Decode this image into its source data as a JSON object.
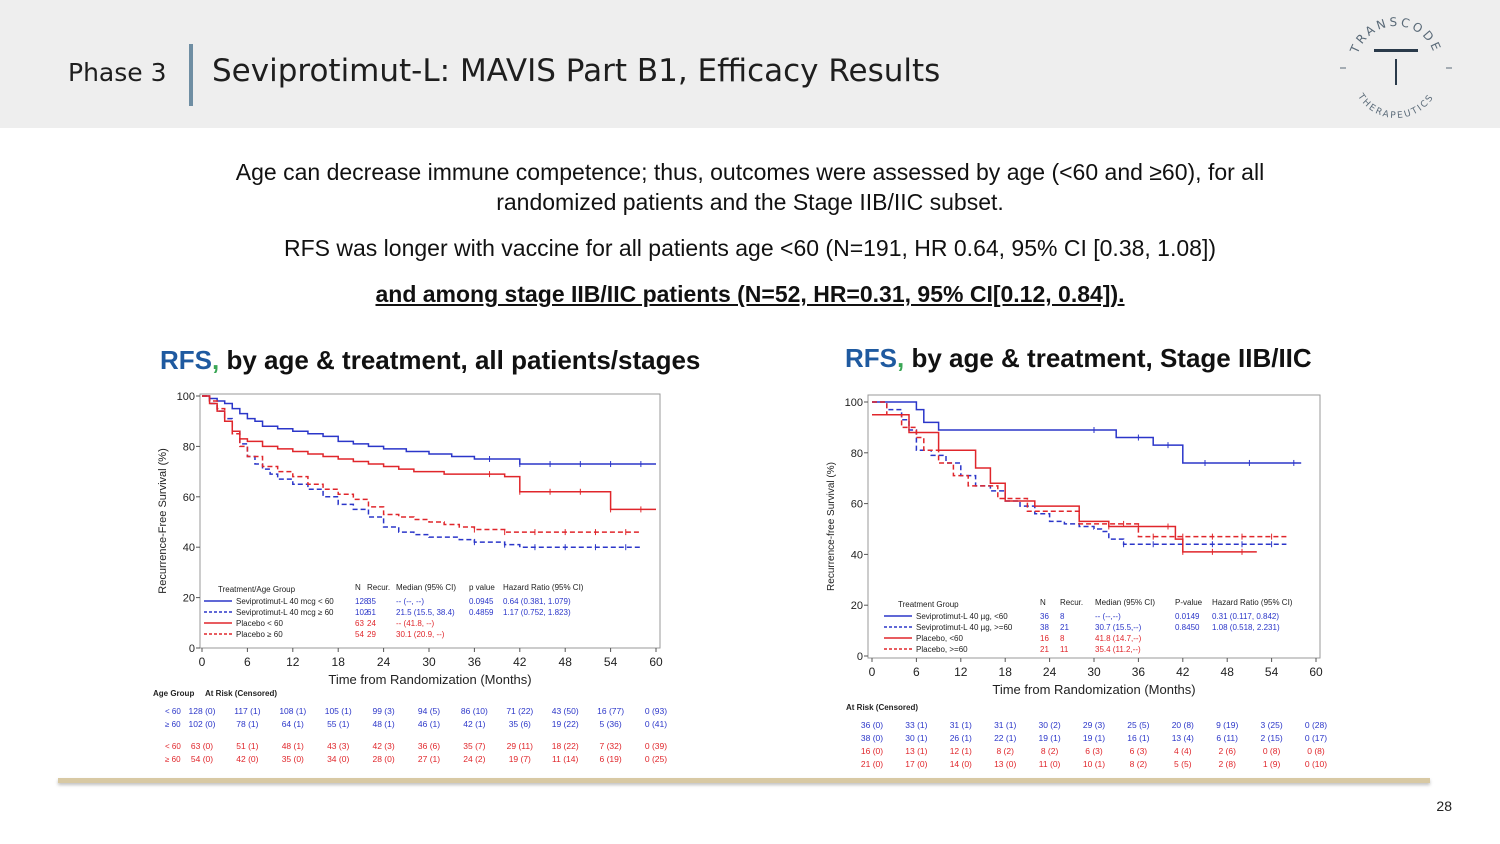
{
  "header": {
    "phase": "Phase 3",
    "title": "Seviprotimut-L:  MAVIS Part B1, Efficacy Results"
  },
  "logo": {
    "ring_text_top": "TRANSCODE",
    "ring_text_bottom": "THERAPEUTICS",
    "letter": "T"
  },
  "body": {
    "line1": "Age can decrease immune competence; thus, outcomes were assessed by age (<60 and ≥60), for all",
    "line2": "randomized patients and the Stage IIB/IIC subset.",
    "line3": "RFS was longer with vaccine for all patients age <60 (N=191, HR 0.64, 95% CI [0.38, 1.08])",
    "line4": "and among stage IIB/IIC patients (N=52, HR=0.31, 95% CI[0.12, 0.84])."
  },
  "panel1": {
    "rfs": "RFS",
    "comma": ",",
    "title_rest": " by age & treatment, all patients/stages"
  },
  "panel2": {
    "rfs": "RFS",
    "comma": ",",
    "title_rest": " by age & treatment, Stage IIB/IIC"
  },
  "page_number": "28",
  "colors": {
    "blue": "#2b36c9",
    "red": "#e0262b",
    "accent": "#1f5aa0",
    "green": "#3aa655"
  },
  "chart_data": [
    {
      "type": "line",
      "title": "RFS, by age & treatment, all patients/stages",
      "xlabel": "Time from Randomization (Months)",
      "ylabel": "Recurrence-Free Survival (%)",
      "xlim": [
        0,
        60
      ],
      "ylim": [
        0,
        100
      ],
      "xticks": [
        "0",
        "6",
        "12",
        "18",
        "24",
        "30",
        "36",
        "42",
        "48",
        "54",
        "60"
      ],
      "yticks": [
        "0",
        "20",
        "40",
        "60",
        "80",
        "100"
      ],
      "legend_title": "Treatment/Age Group",
      "legend_headers": [
        "N",
        "Recur.",
        "Median (95% CI)",
        "p value",
        "Hazard Ratio (95% CI)"
      ],
      "series": [
        {
          "name": "Seviprotimut-L 40 mcg < 60",
          "N": "128",
          "recur": "35",
          "median": "-- (--, --)",
          "p": "0.0945",
          "hr": "0.64 (0.381, 1.079)",
          "color": "#2b36c9",
          "dash": false,
          "x": [
            0,
            1,
            2,
            3,
            4,
            5,
            6,
            7,
            8,
            10,
            12,
            14,
            16,
            18,
            20,
            22,
            24,
            27,
            30,
            33,
            36,
            38,
            40,
            42,
            44,
            46,
            48,
            50,
            52,
            54,
            56,
            58,
            60
          ],
          "y": [
            100,
            99,
            98,
            97,
            95,
            93,
            91,
            90,
            88,
            87,
            86,
            85,
            84,
            82,
            81,
            80,
            79,
            78,
            77,
            76,
            75,
            75,
            75,
            73,
            73,
            73,
            73,
            73,
            73,
            73,
            73,
            73,
            73
          ]
        },
        {
          "name": "Seviprotimut-L 40 mcg ≥ 60",
          "N": "102",
          "recur": "61",
          "median": "21.5 (15.5, 38.4)",
          "p": "0.4859",
          "hr": "1.17 (0.752, 1.823)",
          "color": "#2b36c9",
          "dash": true,
          "x": [
            0,
            1,
            2,
            3,
            4,
            5,
            6,
            7,
            8,
            9,
            10,
            12,
            14,
            16,
            18,
            20,
            22,
            24,
            26,
            28,
            30,
            32,
            34,
            36,
            38,
            40,
            42,
            44,
            46,
            48,
            50,
            52,
            54,
            56,
            58
          ],
          "y": [
            100,
            97,
            94,
            91,
            86,
            81,
            76,
            73,
            71,
            69,
            67,
            65,
            63,
            60,
            57,
            55,
            52,
            48,
            46,
            45,
            44,
            44,
            43,
            42,
            42,
            41,
            40,
            40,
            40,
            40,
            40,
            40,
            40,
            40,
            40
          ]
        },
        {
          "name": "Placebo < 60",
          "N": "63",
          "recur": "24",
          "median": "-- (41.8, --)",
          "p": "",
          "hr": "",
          "color": "#e0262b",
          "dash": false,
          "x": [
            0,
            1,
            2,
            3,
            4,
            5,
            6,
            8,
            10,
            12,
            14,
            16,
            18,
            20,
            22,
            24,
            26,
            28,
            30,
            32,
            34,
            36,
            38,
            40,
            42,
            44,
            46,
            48,
            50,
            52,
            54,
            56,
            58,
            60
          ],
          "y": [
            100,
            97,
            94,
            90,
            86,
            83,
            82,
            80,
            79,
            78,
            77,
            76,
            75,
            74,
            73,
            72,
            71,
            70,
            70,
            69,
            69,
            69,
            69,
            68,
            62,
            62,
            62,
            62,
            62,
            62,
            55,
            55,
            55,
            55
          ]
        },
        {
          "name": "Placebo ≥ 60",
          "N": "54",
          "recur": "29",
          "median": "30.1 (20.9, --)",
          "p": "",
          "hr": "",
          "color": "#e0262b",
          "dash": true,
          "x": [
            0,
            1,
            2,
            3,
            4,
            5,
            6,
            8,
            10,
            12,
            14,
            16,
            18,
            20,
            22,
            24,
            26,
            28,
            30,
            32,
            34,
            36,
            38,
            40,
            42,
            44,
            46,
            48,
            50,
            52,
            54,
            56,
            58
          ],
          "y": [
            100,
            98,
            95,
            90,
            85,
            80,
            76,
            72,
            70,
            68,
            65,
            63,
            61,
            59,
            56,
            53,
            52,
            51,
            50,
            49,
            48,
            47,
            47,
            46,
            46,
            46,
            46,
            46,
            46,
            46,
            46,
            46,
            46
          ]
        }
      ],
      "risk_table": {
        "header": [
          "Age Group",
          "At Risk (Censored)"
        ],
        "rows": [
          {
            "group": "< 60",
            "color": "#2b36c9",
            "values": [
              "128 (0)",
              "117 (1)",
              "108 (1)",
              "105 (1)",
              "99 (3)",
              "94 (5)",
              "86 (10)",
              "71 (22)",
              "43 (50)",
              "16 (77)",
              "0 (93)"
            ]
          },
          {
            "group": "≥ 60",
            "color": "#2b36c9",
            "values": [
              "102 (0)",
              "78 (1)",
              "64 (1)",
              "55 (1)",
              "48 (1)",
              "46 (1)",
              "42 (1)",
              "35 (6)",
              "19 (22)",
              "5 (36)",
              "0 (41)"
            ]
          },
          {
            "group": "< 60",
            "color": "#e0262b",
            "values": [
              "63 (0)",
              "51 (1)",
              "48 (1)",
              "43 (3)",
              "42 (3)",
              "36 (6)",
              "35 (7)",
              "29 (11)",
              "18 (22)",
              "7 (32)",
              "0 (39)"
            ]
          },
          {
            "group": "≥ 60",
            "color": "#e0262b",
            "values": [
              "54 (0)",
              "42 (0)",
              "35 (0)",
              "34 (0)",
              "28 (0)",
              "27 (1)",
              "24 (2)",
              "19 (7)",
              "11 (14)",
              "6 (19)",
              "0 (25)"
            ]
          }
        ]
      }
    },
    {
      "type": "line",
      "title": "RFS, by age & treatment, Stage IIB/IIC",
      "xlabel": "Time from Randomization (Months)",
      "ylabel": "Recurrence-free Survival (%)",
      "xlim": [
        0,
        60
      ],
      "ylim": [
        0,
        100
      ],
      "xticks": [
        "0",
        "6",
        "12",
        "18",
        "24",
        "30",
        "36",
        "42",
        "48",
        "54",
        "60"
      ],
      "yticks": [
        "0",
        "20",
        "40",
        "60",
        "80",
        "100"
      ],
      "legend_title": "Treatment Group",
      "legend_headers": [
        "N",
        "Recur.",
        "Median (95% CI)",
        "P-value",
        "Hazard Ratio (95% CI)"
      ],
      "series": [
        {
          "name": "Seviprotimut-L 40 µg, <60",
          "N": "36",
          "recur": "8",
          "median": "-- (--,--)",
          "p": "0.0149",
          "hr": "0.31 (0.117, 0.842)",
          "color": "#2b36c9",
          "dash": false,
          "x": [
            0,
            2,
            4,
            6,
            7,
            9,
            12,
            15,
            18,
            21,
            24,
            27,
            30,
            33,
            36,
            38,
            40,
            42,
            45,
            48,
            51,
            54,
            57,
            58
          ],
          "y": [
            100,
            100,
            100,
            97,
            92,
            89,
            89,
            89,
            89,
            89,
            89,
            89,
            89,
            86,
            86,
            83,
            83,
            76,
            76,
            76,
            76,
            76,
            76,
            76
          ]
        },
        {
          "name": "Seviprotimut-L 40 µg, >=60",
          "N": "38",
          "recur": "21",
          "median": "30.7 (15.5,--)",
          "p": "0.8450",
          "hr": "1.08 (0.518, 2.231)",
          "color": "#2b36c9",
          "dash": true,
          "x": [
            0,
            2,
            4,
            5,
            6,
            8,
            10,
            12,
            14,
            16,
            18,
            20,
            22,
            24,
            26,
            28,
            30,
            31,
            32,
            34,
            36,
            38,
            40,
            42,
            44,
            46,
            48,
            50,
            52,
            54,
            56
          ],
          "y": [
            100,
            97,
            93,
            89,
            81,
            79,
            76,
            71,
            67,
            65,
            61,
            59,
            56,
            53,
            52,
            51,
            50,
            49,
            46,
            44,
            44,
            44,
            44,
            44,
            44,
            44,
            44,
            44,
            44,
            44,
            44
          ]
        },
        {
          "name": "Placebo, <60",
          "N": "16",
          "recur": "8",
          "median": "41.8 (14.7,--)",
          "p": "",
          "hr": "",
          "color": "#e0262b",
          "dash": false,
          "x": [
            0,
            3,
            5,
            7,
            9,
            12,
            14,
            16,
            18,
            20,
            22,
            24,
            26,
            28,
            30,
            32,
            34,
            36,
            38,
            40,
            41,
            42,
            44,
            46,
            48,
            50,
            52
          ],
          "y": [
            95,
            95,
            88,
            88,
            81,
            81,
            74,
            68,
            61,
            61,
            59,
            59,
            59,
            53,
            53,
            51,
            51,
            51,
            51,
            51,
            46,
            41,
            41,
            41,
            41,
            41,
            41
          ]
        },
        {
          "name": "Placebo, >=60",
          "N": "21",
          "recur": "11",
          "median": "35.4 (11.2,--)",
          "p": "",
          "hr": "",
          "color": "#e0262b",
          "dash": true,
          "x": [
            0,
            2,
            4,
            6,
            7,
            9,
            11,
            13,
            15,
            17,
            19,
            21,
            24,
            26,
            28,
            30,
            32,
            34,
            36,
            38,
            40,
            42,
            44,
            46,
            48,
            50,
            52,
            54,
            56
          ],
          "y": [
            100,
            95,
            90,
            86,
            81,
            76,
            71,
            67,
            67,
            62,
            62,
            57,
            57,
            57,
            52,
            52,
            52,
            52,
            47,
            47,
            47,
            47,
            47,
            47,
            47,
            47,
            47,
            47,
            47
          ]
        }
      ],
      "risk_table": {
        "header": [
          "At Risk (Censored)"
        ],
        "rows": [
          {
            "group": "",
            "color": "#2b36c9",
            "values": [
              "36 (0)",
              "33 (1)",
              "31 (1)",
              "31 (1)",
              "30 (2)",
              "29 (3)",
              "25 (5)",
              "20 (8)",
              "9 (19)",
              "3 (25)",
              "0 (28)"
            ]
          },
          {
            "group": "",
            "color": "#2b36c9",
            "values": [
              "38 (0)",
              "30 (1)",
              "26 (1)",
              "22 (1)",
              "19 (1)",
              "19 (1)",
              "16 (1)",
              "13 (4)",
              "6 (11)",
              "2 (15)",
              "0 (17)"
            ]
          },
          {
            "group": "",
            "color": "#e0262b",
            "values": [
              "16 (0)",
              "13 (1)",
              "12 (1)",
              "8 (2)",
              "8 (2)",
              "6 (3)",
              "6 (3)",
              "4 (4)",
              "2 (6)",
              "0 (8)",
              "0 (8)"
            ]
          },
          {
            "group": "",
            "color": "#e0262b",
            "values": [
              "21 (0)",
              "17 (0)",
              "14 (0)",
              "13 (0)",
              "11 (0)",
              "10 (1)",
              "8 (2)",
              "5 (5)",
              "2 (8)",
              "1 (9)",
              "0 (10)"
            ]
          }
        ]
      }
    }
  ]
}
